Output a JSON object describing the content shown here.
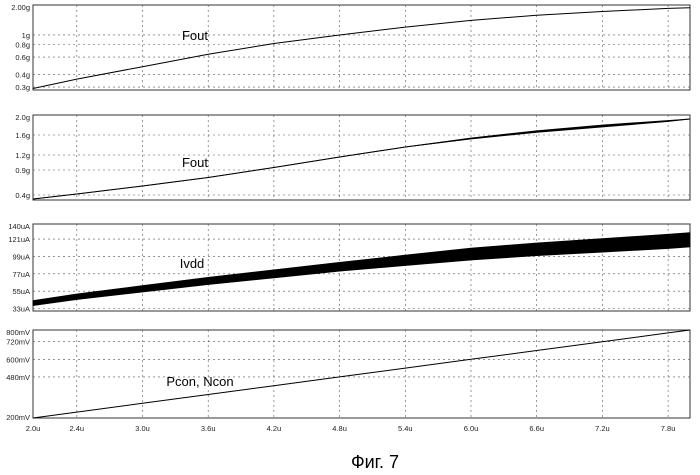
{
  "figure_caption": "Фиг. 7",
  "x_axis": {
    "range": [
      2.0,
      8.0
    ],
    "ticks": [
      "2.0u",
      "2.4u",
      "3.0u",
      "3.6u",
      "4.2u",
      "4.8u",
      "5.4u",
      "6.0u",
      "6.6u",
      "7.2u",
      "7.8u"
    ],
    "tick_values": [
      2.0,
      2.4,
      3.0,
      3.6,
      4.2,
      4.8,
      5.4,
      6.0,
      6.6,
      7.2,
      7.8
    ]
  },
  "chart_data": [
    {
      "type": "line",
      "title": "",
      "xlabel": "",
      "ylabel": "",
      "yscale": "log",
      "ylim": [
        0.28,
        2.0
      ],
      "series_label": "Fout",
      "y_ticks": [
        "2.00g",
        "1g",
        "0.8g",
        "0.6g",
        "0.4g",
        "0.3g"
      ],
      "y_tick_values": [
        2.0,
        1.0,
        0.8,
        0.6,
        0.4,
        0.3
      ],
      "x": [
        2.0,
        2.4,
        3.0,
        3.6,
        4.2,
        4.8,
        5.4,
        6.0,
        6.6,
        7.2,
        7.8,
        8.0
      ],
      "y": [
        0.29,
        0.36,
        0.48,
        0.64,
        0.82,
        1.0,
        1.2,
        1.4,
        1.58,
        1.72,
        1.85,
        1.88
      ],
      "band": [
        0,
        0,
        0,
        0,
        0,
        0,
        0,
        0,
        0,
        0,
        0,
        0
      ],
      "grid": true
    },
    {
      "type": "line",
      "title": "",
      "xlabel": "",
      "ylabel": "",
      "yscale": "linear",
      "ylim": [
        0.3,
        2.0
      ],
      "series_label": "Fout",
      "y_ticks": [
        "2.0g",
        "1.6g",
        "1.2g",
        "0.9g",
        "0.4g"
      ],
      "y_tick_values": [
        2.0,
        1.6,
        1.2,
        0.9,
        0.4
      ],
      "x": [
        2.0,
        2.4,
        3.0,
        3.6,
        4.2,
        4.8,
        5.4,
        6.0,
        6.6,
        7.2,
        7.8,
        8.0
      ],
      "y": [
        0.32,
        0.42,
        0.58,
        0.75,
        0.95,
        1.16,
        1.36,
        1.53,
        1.67,
        1.78,
        1.88,
        1.92
      ],
      "band": [
        0,
        0,
        0,
        0,
        0,
        0,
        0,
        0.01,
        0.015,
        0.02,
        0.01,
        0
      ],
      "grid": true
    },
    {
      "type": "area",
      "title": "",
      "xlabel": "",
      "ylabel": "",
      "yscale": "linear",
      "ylim": [
        30,
        140
      ],
      "series_label": "Ivdd",
      "y_ticks": [
        "140uA",
        "121uA",
        "99uA",
        "77uA",
        "55uA",
        "33uA"
      ],
      "y_tick_values": [
        140,
        121,
        99,
        77,
        55,
        33
      ],
      "x": [
        2.0,
        2.4,
        3.0,
        3.6,
        4.2,
        4.8,
        5.4,
        6.0,
        6.6,
        7.2,
        7.8,
        8.0
      ],
      "y": [
        40,
        48,
        58,
        68,
        77,
        86,
        94,
        102,
        108,
        113,
        118,
        120
      ],
      "band": [
        3,
        3.5,
        4,
        4.5,
        5,
        5.5,
        6.5,
        7.5,
        8,
        8.5,
        9,
        9
      ],
      "grid": true
    },
    {
      "type": "line",
      "title": "",
      "xlabel": "",
      "ylabel": "",
      "yscale": "linear",
      "ylim": [
        200,
        800
      ],
      "series_label": "Pcon, Ncon",
      "y_ticks": [
        "800mV",
        "720mV",
        "600mV",
        "480mV",
        "200mV"
      ],
      "y_tick_values": [
        800,
        720,
        600,
        480,
        200
      ],
      "x": [
        2.0,
        2.4,
        3.0,
        3.6,
        4.2,
        4.8,
        5.4,
        6.0,
        6.6,
        7.2,
        7.8,
        8.0
      ],
      "y": [
        200,
        240,
        300,
        360,
        420,
        480,
        540,
        600,
        660,
        720,
        780,
        800
      ],
      "band": [
        0,
        0,
        0,
        0,
        0,
        0,
        0,
        0,
        0,
        0,
        0,
        0
      ],
      "grid": true
    }
  ]
}
